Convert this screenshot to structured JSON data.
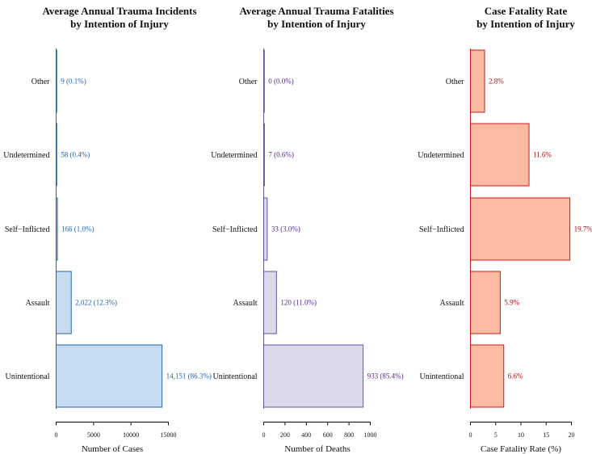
{
  "chart_data": [
    {
      "type": "bar",
      "orientation": "horizontal",
      "title_lines": [
        "Average Annual Trauma Incidents",
        "by Intention of Injury"
      ],
      "xlabel": "Number of Cases",
      "categories": [
        "Other",
        "Undetermined",
        "Self−Inflicted",
        "Assault",
        "Unintentional"
      ],
      "values": [
        9,
        58,
        166,
        2022,
        14151
      ],
      "data_labels": [
        "9 (0.1%)",
        "58 (0.4%)",
        "166 (1.0%)",
        "2,022 (12.3%)",
        "14,151 (86.3%)"
      ],
      "xlim": [
        0,
        15000
      ],
      "xticks": [
        0,
        5000,
        10000,
        15000
      ],
      "grid": false,
      "colors": {
        "fill": "#c6dbef",
        "stroke": "#2166ac",
        "label": "#2166ac"
      }
    },
    {
      "type": "bar",
      "orientation": "horizontal",
      "title_lines": [
        "Average Annual Trauma Fatalities",
        "by Intention of Injury"
      ],
      "xlabel": "Number of Deaths",
      "categories": [
        "Other",
        "Undetermined",
        "Self−Inflicted",
        "Assault",
        "Unintentional"
      ],
      "values": [
        0,
        7,
        33,
        120,
        933
      ],
      "data_labels": [
        "0 (0.0%)",
        "7 (0.6%)",
        "33 (3.0%)",
        "120 (11.0%)",
        "933 (85.4%)"
      ],
      "xlim": [
        0,
        1000
      ],
      "xticks": [
        0,
        200,
        400,
        600,
        800,
        1000
      ],
      "grid": false,
      "colors": {
        "fill": "#dadaeb",
        "stroke": "#6a51a3",
        "label": "#54278f"
      }
    },
    {
      "type": "bar",
      "orientation": "horizontal",
      "title_lines": [
        "Case Fatality Rate",
        "by Intention of Injury"
      ],
      "xlabel": "Case Fatality Rate (%)",
      "categories": [
        "Other",
        "Undetermined",
        "Self−Inflicted",
        "Assault",
        "Unintentional"
      ],
      "values": [
        2.8,
        11.6,
        19.7,
        5.9,
        6.6
      ],
      "data_labels": [
        "2.8%",
        "11.6%",
        "19.7%",
        "5.9%",
        "6.6%"
      ],
      "xlim": [
        0,
        20
      ],
      "xticks": [
        0,
        5,
        10,
        15,
        20
      ],
      "grid": false,
      "colors": {
        "fill": "#fcbba1",
        "stroke": "#cb181d",
        "label": "#a50f15"
      }
    }
  ]
}
